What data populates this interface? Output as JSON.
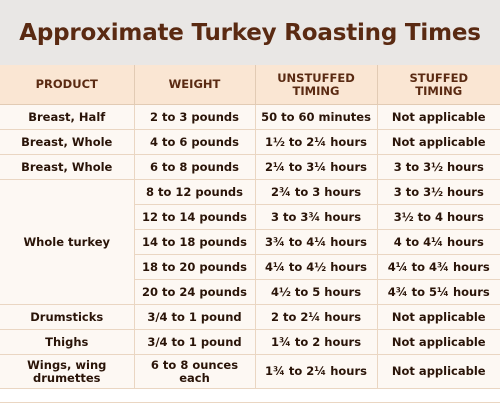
{
  "title": "Approximate Turkey Roasting Times",
  "headers": {
    "product": "PRODUCT",
    "weight": "WEIGHT",
    "unstuffed_line1": "UNSTUFFED",
    "unstuffed_line2": "TIMING",
    "stuffed_line1": "STUFFED",
    "stuffed_line2": "TIMING"
  },
  "rows": [
    {
      "product": "Breast, Half",
      "weight": "2 to 3 pounds",
      "unstuffed": "50 to 60 minutes",
      "stuffed": "Not applicable"
    },
    {
      "product": "Breast, Whole",
      "weight": "4 to 6 pounds",
      "unstuffed": "1½ to 2¼ hours",
      "stuffed": "Not applicable"
    },
    {
      "product": "Breast, Whole",
      "weight": "6 to 8 pounds",
      "unstuffed": "2¼ to 3¼ hours",
      "stuffed": "3 to 3½ hours"
    },
    {
      "product": "Whole turkey",
      "weight": "8 to 12 pounds",
      "unstuffed": "2¾ to 3 hours",
      "stuffed": "3 to 3½ hours"
    },
    {
      "product": "",
      "weight": "12 to 14 pounds",
      "unstuffed": "3 to 3¾ hours",
      "stuffed": "3½ to 4 hours"
    },
    {
      "product": "",
      "weight": "14 to 18 pounds",
      "unstuffed": "3¾ to 4¼ hours",
      "stuffed": "4 to 4¼ hours"
    },
    {
      "product": "",
      "weight": "18 to 20 pounds",
      "unstuffed": "4¼ to 4½ hours",
      "stuffed": "4¼ to 4¾ hours"
    },
    {
      "product": "",
      "weight": "20 to 24 pounds",
      "unstuffed": "4½ to 5 hours",
      "stuffed": "4¾ to 5¼ hours"
    },
    {
      "product": "Drumsticks",
      "weight": "3/4 to 1 pound",
      "unstuffed": "2 to 2¼ hours",
      "stuffed": "Not applicable"
    },
    {
      "product": "Thighs",
      "weight": "3/4 to 1 pound",
      "unstuffed": "1¾ to 2 hours",
      "stuffed": "Not applicable"
    },
    {
      "product": "Wings, wing drumettes",
      "weight": "6 to 8 ounces each",
      "unstuffed": "1¾ to 2¼ hours",
      "stuffed": "Not applicable"
    }
  ],
  "colors": {
    "title_band": "#e9e7e5",
    "title_text": "#5a2a12",
    "header_bg": "#fae6d3",
    "cell_bg": "#fdf8f3",
    "border": "#ead6c2"
  }
}
